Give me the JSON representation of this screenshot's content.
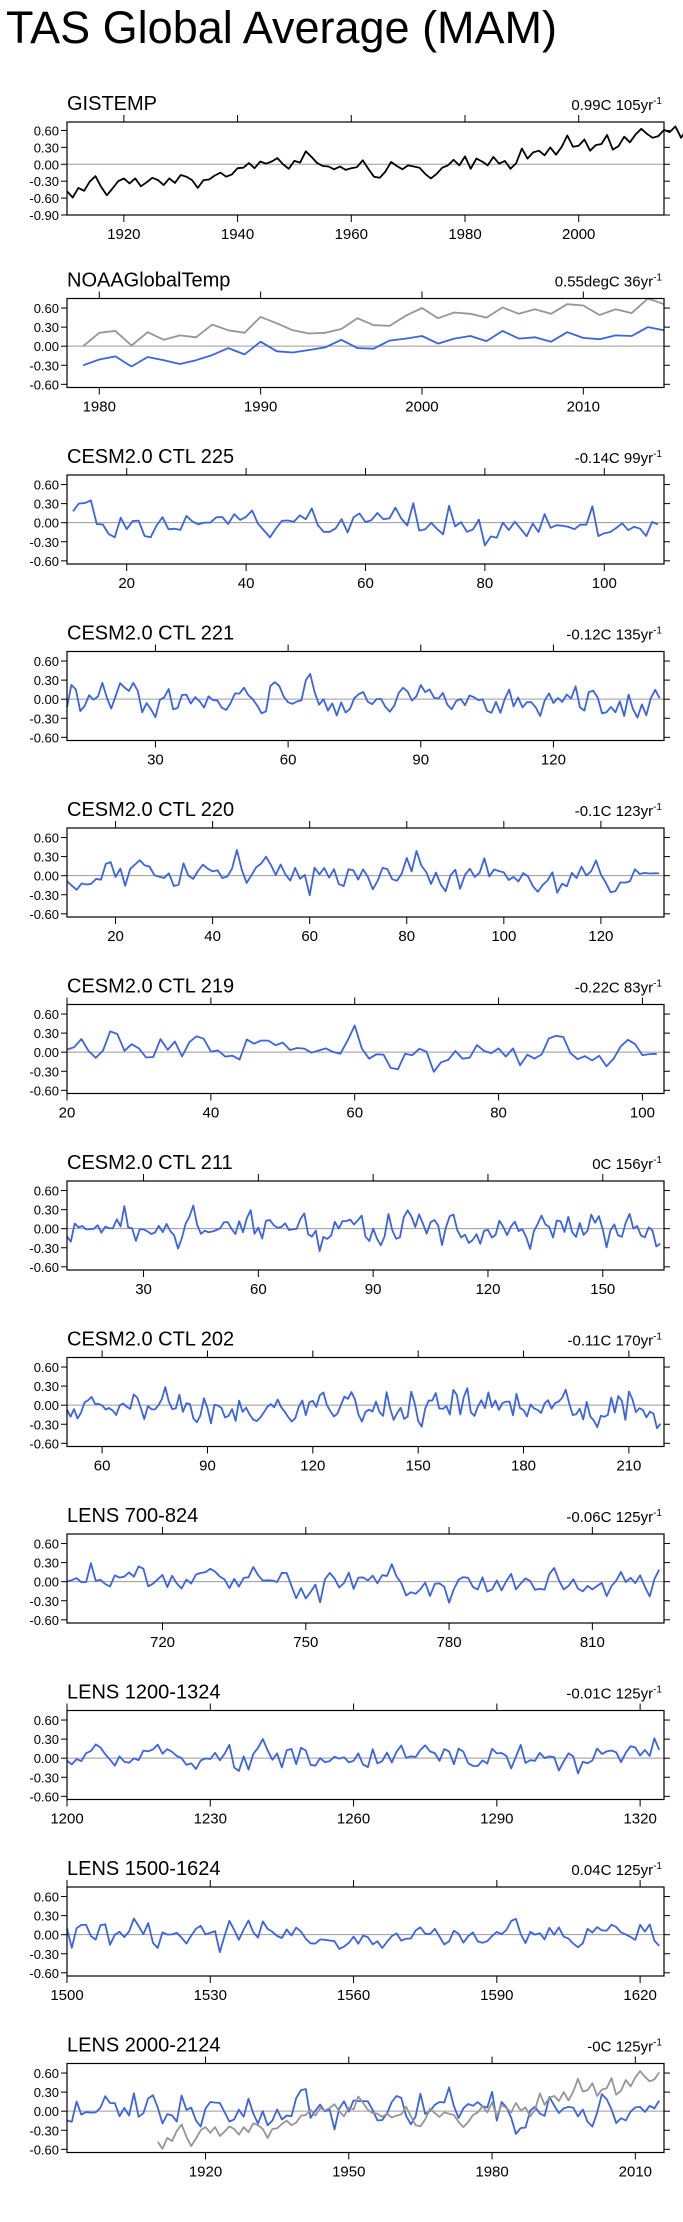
{
  "title": "TAS Global Average (MAM)",
  "colors": {
    "blue": "#3d64e0",
    "gray": "#969696",
    "black": "#000000",
    "zero_line": "#9a9a9a"
  },
  "y_ticks": [
    "0.60",
    "0.30",
    "0.00",
    "-0.30",
    "-0.60"
  ],
  "y_ticks_first": [
    "0.60",
    "0.30",
    "0.00",
    "-0.30",
    "-0.60",
    "-0.90"
  ],
  "chart_data": [
    {
      "type": "line",
      "label": "GISTEMP",
      "trend": "0.99C 105yr",
      "trend_sup": "-1",
      "x_ticks": [
        "1920",
        "1940",
        "1960",
        "1980",
        "2000"
      ],
      "xlim": [
        1910,
        2015
      ],
      "ylim": [
        -0.9,
        0.75
      ],
      "series": [
        {
          "color": "black",
          "x_start": 1910,
          "x_step": 1,
          "values": [
            -0.48,
            -0.59,
            -0.42,
            -0.47,
            -0.31,
            -0.21,
            -0.4,
            -0.55,
            -0.43,
            -0.3,
            -0.25,
            -0.34,
            -0.25,
            -0.39,
            -0.32,
            -0.24,
            -0.28,
            -0.37,
            -0.25,
            -0.33,
            -0.19,
            -0.22,
            -0.28,
            -0.42,
            -0.28,
            -0.27,
            -0.2,
            -0.15,
            -0.22,
            -0.18,
            -0.07,
            -0.06,
            0.02,
            -0.07,
            0.05,
            0.01,
            0.05,
            0.11,
            0.0,
            -0.08,
            0.06,
            0.03,
            0.23,
            0.13,
            0.02,
            -0.03,
            -0.04,
            -0.09,
            -0.04,
            -0.1,
            -0.07,
            -0.05,
            0.07,
            -0.08,
            -0.22,
            -0.24,
            -0.13,
            0.04,
            -0.03,
            -0.09,
            -0.02,
            -0.04,
            -0.06,
            -0.17,
            -0.25,
            -0.17,
            -0.06,
            -0.02,
            0.08,
            -0.02,
            0.14,
            -0.08,
            0.1,
            0.05,
            -0.02,
            0.13,
            0.01,
            0.06,
            -0.08,
            0.02,
            0.28,
            0.1,
            0.21,
            0.24,
            0.16,
            0.3,
            0.17,
            0.31,
            0.51,
            0.31,
            0.33,
            0.44,
            0.24,
            0.34,
            0.36,
            0.52,
            0.26,
            0.32,
            0.49,
            0.39,
            0.53,
            0.63,
            0.54,
            0.47,
            0.5,
            0.61,
            0.57,
            0.67,
            0.47,
            0.62,
            0.61,
            0.55,
            0.73,
            0.68,
            0.62,
            0.55
          ]
        }
      ]
    },
    {
      "type": "line",
      "label": "NOAAGlobalTemp",
      "trend": "0.55degC 36yr",
      "trend_sup": "-1",
      "x_ticks": [
        "1980",
        "1990",
        "2000",
        "2010"
      ],
      "xlim": [
        1978,
        2015
      ],
      "ylim": [
        -0.65,
        0.75
      ],
      "series": [
        {
          "color": "gray",
          "x_start": 1979,
          "x_step": 1,
          "values": [
            0.0,
            0.21,
            0.24,
            0.01,
            0.22,
            0.1,
            0.17,
            0.14,
            0.34,
            0.25,
            0.21,
            0.46,
            0.36,
            0.25,
            0.2,
            0.21,
            0.27,
            0.44,
            0.33,
            0.32,
            0.48,
            0.6,
            0.44,
            0.53,
            0.51,
            0.45,
            0.61,
            0.51,
            0.58,
            0.51,
            0.66,
            0.64,
            0.49,
            0.58,
            0.52,
            0.75,
            0.66
          ]
        },
        {
          "color": "blue",
          "x_start": 1979,
          "x_step": 1,
          "values": [
            -0.3,
            -0.21,
            -0.16,
            -0.32,
            -0.17,
            -0.22,
            -0.28,
            -0.22,
            -0.14,
            -0.03,
            -0.13,
            0.07,
            -0.08,
            -0.1,
            -0.06,
            -0.02,
            0.1,
            -0.03,
            -0.04,
            0.09,
            0.12,
            0.16,
            0.04,
            0.12,
            0.16,
            0.08,
            0.24,
            0.12,
            0.14,
            0.07,
            0.22,
            0.13,
            0.11,
            0.17,
            0.16,
            0.3,
            0.25
          ]
        }
      ]
    },
    {
      "type": "line",
      "label": "CESM2.0 CTL 225",
      "trend": "-0.14C 99yr",
      "trend_sup": "-1",
      "x_ticks": [
        "20",
        "40",
        "60",
        "80",
        "100"
      ],
      "xlim": [
        10,
        110
      ],
      "ylim": [
        -0.65,
        0.75
      ],
      "series": [
        {
          "color": "blue",
          "x_start": 11,
          "x_step": 1,
          "gen": {
            "seed": 225,
            "amp": 0.14,
            "trend": -0.14,
            "n": 99
          }
        }
      ]
    },
    {
      "type": "line",
      "label": "CESM2.0 CTL 221",
      "trend": "-0.12C 135yr",
      "trend_sup": "-1",
      "x_ticks": [
        "30",
        "60",
        "90",
        "120"
      ],
      "xlim": [
        10,
        145
      ],
      "ylim": [
        -0.65,
        0.75
      ],
      "series": [
        {
          "color": "blue",
          "x_start": 10,
          "x_step": 1,
          "gen": {
            "seed": 221,
            "amp": 0.13,
            "trend": -0.12,
            "n": 135
          }
        }
      ]
    },
    {
      "type": "line",
      "label": "CESM2.0 CTL 220",
      "trend": "-0.1C 123yr",
      "trend_sup": "-1",
      "x_ticks": [
        "20",
        "40",
        "60",
        "80",
        "100",
        "120"
      ],
      "xlim": [
        10,
        133
      ],
      "ylim": [
        -0.65,
        0.75
      ],
      "series": [
        {
          "color": "blue",
          "x_start": 10,
          "x_step": 1,
          "gen": {
            "seed": 220,
            "amp": 0.14,
            "trend": -0.1,
            "n": 123
          }
        }
      ]
    },
    {
      "type": "line",
      "label": "CESM2.0 CTL 219",
      "trend": "-0.22C 83yr",
      "trend_sup": "-1",
      "x_ticks": [
        "20",
        "40",
        "60",
        "80",
        "100"
      ],
      "xlim": [
        20,
        103
      ],
      "ylim": [
        -0.65,
        0.75
      ],
      "series": [
        {
          "color": "blue",
          "x_start": 20,
          "x_step": 1,
          "gen": {
            "seed": 219,
            "amp": 0.13,
            "trend": -0.22,
            "n": 83
          }
        }
      ]
    },
    {
      "type": "line",
      "label": "CESM2.0 CTL 211",
      "trend": "0C 156yr",
      "trend_sup": "-1",
      "x_ticks": [
        "30",
        "60",
        "90",
        "120",
        "150"
      ],
      "xlim": [
        10,
        166
      ],
      "ylim": [
        -0.65,
        0.75
      ],
      "series": [
        {
          "color": "blue",
          "x_start": 10,
          "x_step": 1,
          "gen": {
            "seed": 211,
            "amp": 0.13,
            "trend": 0.0,
            "n": 156
          }
        }
      ]
    },
    {
      "type": "line",
      "label": "CESM2.0 CTL 202",
      "trend": "-0.11C 170yr",
      "trend_sup": "-1",
      "x_ticks": [
        "60",
        "90",
        "120",
        "150",
        "180",
        "210"
      ],
      "xlim": [
        50,
        220
      ],
      "ylim": [
        -0.65,
        0.75
      ],
      "series": [
        {
          "color": "blue",
          "x_start": 50,
          "x_step": 1,
          "gen": {
            "seed": 202,
            "amp": 0.14,
            "trend": -0.11,
            "n": 170
          }
        }
      ]
    },
    {
      "type": "line",
      "label": "LENS 700-824",
      "trend": "-0.06C 125yr",
      "trend_sup": "-1",
      "x_ticks": [
        "720",
        "750",
        "780",
        "810"
      ],
      "xlim": [
        700,
        825
      ],
      "ylim": [
        -0.65,
        0.75
      ],
      "series": [
        {
          "color": "blue",
          "x_start": 700,
          "x_step": 1,
          "gen": {
            "seed": 700,
            "amp": 0.12,
            "trend": -0.06,
            "n": 125
          }
        }
      ]
    },
    {
      "type": "line",
      "label": "LENS 1200-1324",
      "trend": "-0.01C 125yr",
      "trend_sup": "-1",
      "x_ticks": [
        "1200",
        "1230",
        "1260",
        "1290",
        "1320"
      ],
      "xlim": [
        1200,
        1325
      ],
      "ylim": [
        -0.65,
        0.75
      ],
      "series": [
        {
          "color": "blue",
          "x_start": 1200,
          "x_step": 1,
          "gen": {
            "seed": 1200,
            "amp": 0.11,
            "trend": -0.01,
            "n": 125
          }
        }
      ]
    },
    {
      "type": "line",
      "label": "LENS 1500-1624",
      "trend": "0.04C 125yr",
      "trend_sup": "-1",
      "x_ticks": [
        "1500",
        "1530",
        "1560",
        "1590",
        "1620"
      ],
      "xlim": [
        1500,
        1625
      ],
      "ylim": [
        -0.65,
        0.75
      ],
      "series": [
        {
          "color": "blue",
          "x_start": 1500,
          "x_step": 1,
          "gen": {
            "seed": 1500,
            "amp": 0.11,
            "trend": 0.04,
            "n": 125
          }
        }
      ]
    },
    {
      "type": "line",
      "label": "LENS 2000-2124",
      "trend": "-0C 125yr",
      "trend_sup": "-1",
      "x_ticks": [
        "1920",
        "1950",
        "1980",
        "2010"
      ],
      "xlim": [
        1891,
        2016
      ],
      "ylim": [
        -0.65,
        0.75
      ],
      "series": [
        {
          "color": "blue",
          "x_start": 1891,
          "x_step": 1,
          "gen": {
            "seed": 2000,
            "amp": 0.13,
            "trend": 0.0,
            "n": 125
          }
        },
        {
          "color": "gray",
          "x_start": 1910,
          "x_step": 1,
          "values": [
            -0.48,
            -0.59,
            -0.42,
            -0.47,
            -0.31,
            -0.21,
            -0.4,
            -0.55,
            -0.43,
            -0.3,
            -0.25,
            -0.34,
            -0.25,
            -0.39,
            -0.32,
            -0.24,
            -0.28,
            -0.37,
            -0.25,
            -0.33,
            -0.19,
            -0.22,
            -0.28,
            -0.42,
            -0.28,
            -0.27,
            -0.2,
            -0.15,
            -0.22,
            -0.18,
            -0.07,
            -0.06,
            0.02,
            -0.07,
            0.05,
            0.01,
            0.05,
            0.11,
            0.0,
            -0.08,
            0.06,
            0.03,
            0.23,
            0.13,
            0.02,
            -0.03,
            -0.04,
            -0.09,
            -0.04,
            -0.1,
            -0.07,
            -0.05,
            0.07,
            -0.08,
            -0.22,
            -0.24,
            -0.13,
            0.04,
            -0.03,
            -0.09,
            -0.02,
            -0.04,
            -0.06,
            -0.17,
            -0.25,
            -0.17,
            -0.06,
            -0.02,
            0.08,
            -0.02,
            0.14,
            -0.08,
            0.1,
            0.05,
            -0.02,
            0.13,
            0.01,
            0.06,
            -0.08,
            0.02,
            0.28,
            0.1,
            0.21,
            0.24,
            0.16,
            0.3,
            0.17,
            0.31,
            0.51,
            0.31,
            0.33,
            0.44,
            0.24,
            0.34,
            0.36,
            0.52,
            0.26,
            0.32,
            0.49,
            0.39,
            0.53,
            0.63,
            0.54,
            0.47,
            0.5,
            0.61
          ]
        }
      ]
    }
  ]
}
